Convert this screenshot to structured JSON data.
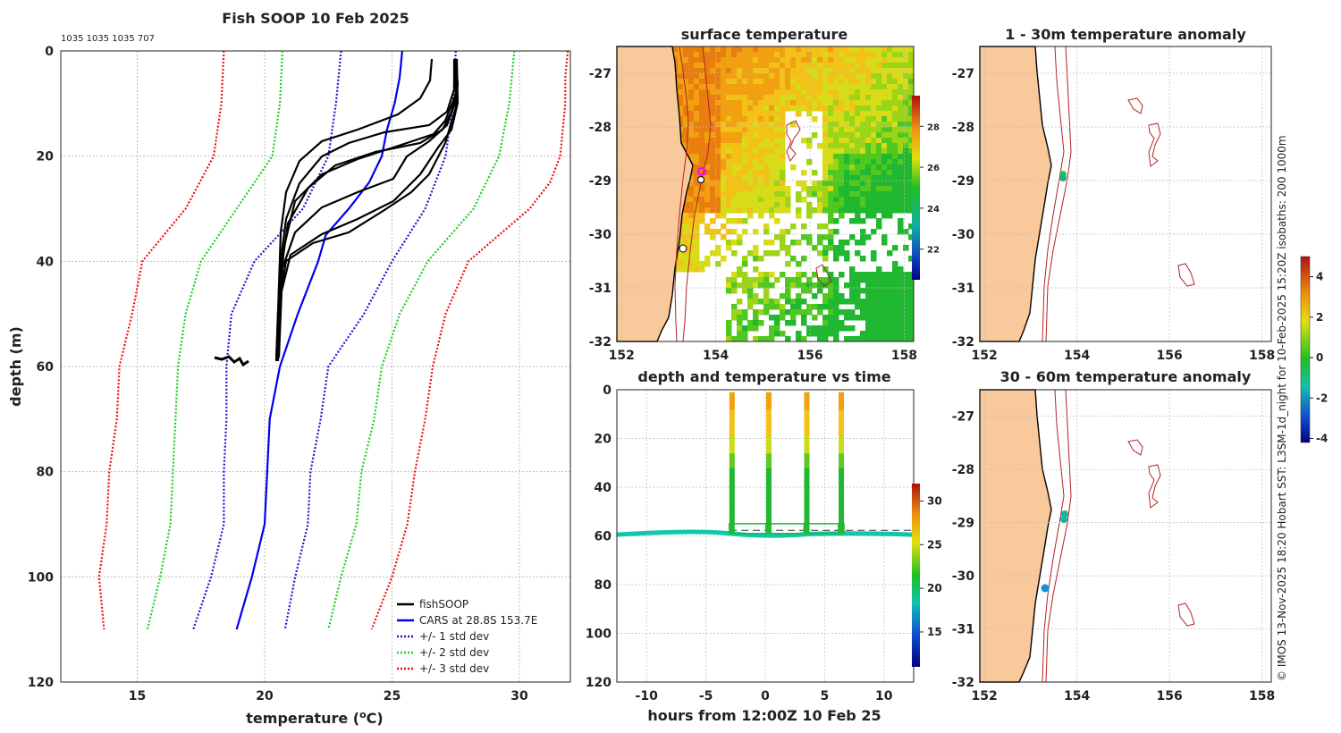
{
  "colors": {
    "land": "#f9c89b",
    "isobath": "#b22222",
    "cars": "#0000ee",
    "soop": "#000000",
    "std1": "#1a1acc",
    "std2": "#22cc22",
    "std3": "#ee1111",
    "grid": "#bbbbbb"
  },
  "chart_data": [
    {
      "type": "line",
      "title": "Fish SOOP 10 Feb 2025",
      "subtitle": "1035 1035 1035 707",
      "xlabel": "temperature (",
      "xlabel_unit": "o",
      "xlabel_end": "C)",
      "ylabel": "depth (m)",
      "xlim": [
        12,
        32
      ],
      "ylim": [
        120,
        0
      ],
      "xticks": [
        15,
        20,
        25,
        30
      ],
      "yticks": [
        0,
        20,
        40,
        60,
        80,
        100,
        120
      ],
      "legend": [
        "fishSOOP",
        "CARS at 28.8S 153.7E",
        "+/- 1 std dev",
        "+/- 2 std dev",
        "+/- 3 std dev"
      ],
      "legend_position": "bottom-right",
      "series": [
        {
          "name": "CARS",
          "y": [
            0,
            5,
            10,
            15,
            20,
            25,
            30,
            35,
            40,
            50,
            60,
            70,
            80,
            90,
            100,
            110
          ],
          "x": [
            25.4,
            25.3,
            25.1,
            24.8,
            24.6,
            24.1,
            23.3,
            22.4,
            22.1,
            21.3,
            20.6,
            20.2,
            20.1,
            20.0,
            19.5,
            18.9
          ]
        },
        {
          "name": "-1 std",
          "y": [
            0,
            10,
            20,
            30,
            40,
            50,
            60,
            70,
            80,
            90,
            100,
            110
          ],
          "x": [
            23.0,
            22.8,
            22.5,
            21.5,
            19.6,
            18.7,
            18.5,
            18.5,
            18.4,
            18.4,
            17.9,
            17.2
          ]
        },
        {
          "name": "+1 std",
          "y": [
            0,
            10,
            20,
            30,
            40,
            50,
            60,
            70,
            80,
            90,
            100,
            110
          ],
          "x": [
            27.5,
            27.4,
            27.1,
            26.3,
            25.0,
            23.9,
            22.5,
            22.2,
            21.8,
            21.7,
            21.2,
            20.8
          ]
        },
        {
          "name": "-2 std",
          "y": [
            0,
            10,
            20,
            30,
            40,
            50,
            60,
            70,
            80,
            90,
            100,
            110
          ],
          "x": [
            20.7,
            20.6,
            20.3,
            18.9,
            17.5,
            16.9,
            16.6,
            16.5,
            16.4,
            16.3,
            15.9,
            15.4
          ]
        },
        {
          "name": "+2 std",
          "y": [
            0,
            10,
            20,
            30,
            40,
            50,
            60,
            70,
            80,
            90,
            100,
            110
          ],
          "x": [
            29.8,
            29.6,
            29.2,
            28.2,
            26.4,
            25.3,
            24.6,
            24.3,
            23.8,
            23.6,
            23.0,
            22.5
          ]
        },
        {
          "name": "-3 std",
          "y": [
            0,
            10,
            20,
            30,
            40,
            50,
            60,
            70,
            80,
            90,
            100,
            110
          ],
          "x": [
            18.4,
            18.3,
            18.0,
            16.9,
            15.2,
            14.8,
            14.3,
            14.2,
            13.9,
            13.8,
            13.5,
            13.7
          ]
        },
        {
          "name": "+3 std",
          "y": [
            0,
            5,
            10,
            15,
            20,
            25,
            30,
            35,
            40,
            50,
            60,
            70,
            80,
            90,
            100,
            110
          ],
          "x": [
            31.9,
            31.8,
            31.8,
            31.7,
            31.6,
            31.2,
            30.4,
            29.2,
            28.0,
            27.1,
            26.6,
            26.3,
            25.9,
            25.6,
            25.0,
            24.2
          ]
        }
      ]
    },
    {
      "type": "heatmap",
      "title": "surface temperature",
      "xticks": [
        152,
        154,
        156,
        158
      ],
      "yticks": [
        -27,
        -28,
        -29,
        -30,
        -31,
        -32
      ],
      "xlim": [
        151.9,
        158.2
      ],
      "ylim": [
        -32,
        -26.5
      ],
      "colorbar_ticks": [
        22,
        24,
        26,
        28
      ],
      "colorbar_range": [
        20.5,
        29.5
      ]
    },
    {
      "type": "heatmap",
      "title": "1 - 30m temperature anomaly",
      "xticks": [
        152,
        154,
        156,
        158
      ],
      "yticks": [
        -27,
        -28,
        -29,
        -30,
        -31,
        -32
      ],
      "xlim": [
        151.9,
        158.2
      ],
      "ylim": [
        -32,
        -26.5
      ]
    },
    {
      "type": "scatter",
      "title": "depth and temperature vs time",
      "xlabel": "hours from 12:00Z 10 Feb 25",
      "xlim": [
        -12.5,
        12.5
      ],
      "ylim": [
        120,
        0
      ],
      "xticks": [
        -10,
        -5,
        0,
        5,
        10
      ],
      "yticks": [
        0,
        20,
        40,
        60,
        80,
        100,
        120
      ],
      "colorbar_ticks": [
        15,
        20,
        25,
        30
      ],
      "colorbar_range": [
        11,
        32
      ],
      "casts_hours": [
        -2.8,
        0.3,
        3.5,
        6.4
      ]
    },
    {
      "type": "heatmap",
      "title": "30 - 60m temperature anomaly",
      "xticks": [
        152,
        154,
        156,
        158
      ],
      "yticks": [
        -27,
        -28,
        -29,
        -30,
        -31,
        -32
      ],
      "xlim": [
        151.9,
        158.2
      ],
      "ylim": [
        -32,
        -26.5
      ]
    },
    {
      "type": "colorbar",
      "colorbar_ticks": [
        -4,
        -2,
        0,
        2,
        4
      ],
      "colorbar_range": [
        -4.2,
        5
      ]
    }
  ],
  "side_caption": "© IMOS 13-Nov-2025 18:20 Hobart SST: L3SM-1d_night for 10-Feb-2025 15:20Z isobaths: 200  1000m"
}
